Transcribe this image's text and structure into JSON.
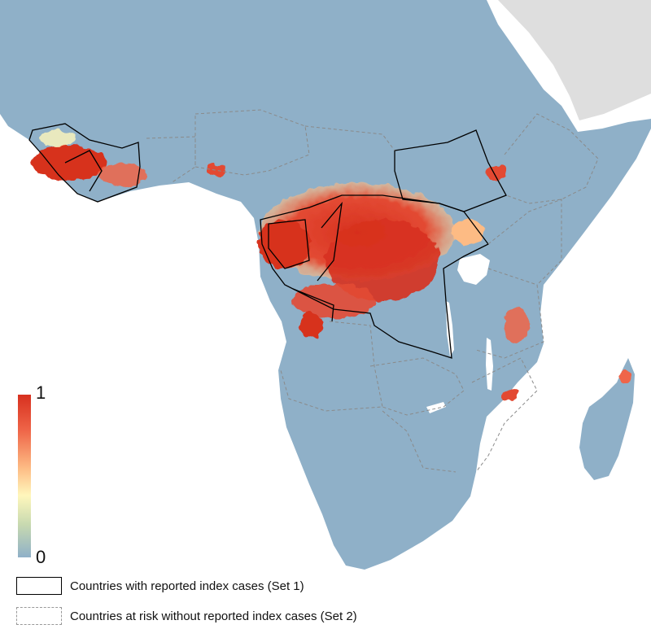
{
  "colors": {
    "land_low": "#8fb0c8",
    "land_mid": "#f7f3b8",
    "land_high": "#d7301f",
    "ocean": "#ffffff",
    "other_land": "#dedede",
    "set1_border": "#000000",
    "set2_border": "#8a8a8a"
  },
  "scale": {
    "max_label": "1",
    "min_label": "0",
    "gradient": [
      "#d7301f",
      "#ef6548",
      "#fdbb84",
      "#fff7bc",
      "#c7d9b0",
      "#8fb0c8"
    ]
  },
  "legend": {
    "set1_label": "Countries with reported index cases (Set 1)",
    "set2_label": "Countries at risk without reported index cases (Set 2)"
  }
}
